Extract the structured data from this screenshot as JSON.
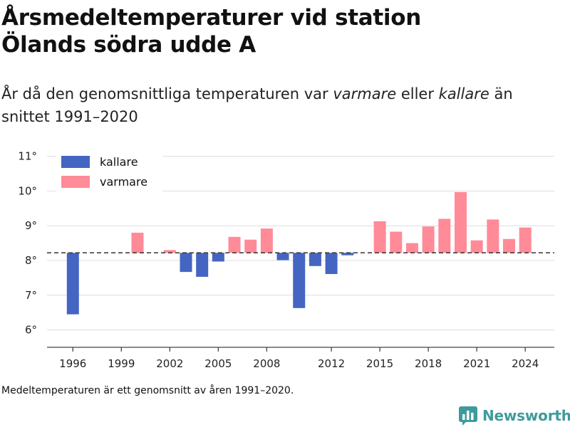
{
  "title_line1": "Årsmedeltemperaturer vid station",
  "title_line2": "Ölands södra udde A",
  "subtitle": {
    "part1": "År då den genomsnittliga temperaturen var ",
    "warm_word": "varmare",
    "part2": " eller ",
    "cold_word": "kallare",
    "part3": " än snittet 1991–2020"
  },
  "footnote": "Medeltemperaturen är ett genomsnitt av åren 1991–2020.",
  "brand": {
    "name": "Newsworthy",
    "icon": "newsworthy-bar-chart-logo-icon"
  },
  "colors": {
    "kallare": "#4565c2",
    "varmare": "#ff8b98",
    "grid": "#dddddd",
    "reference": "#333333"
  },
  "chart_data": {
    "type": "bar",
    "baseline": 8.22,
    "ylim": [
      5.5,
      11.3
    ],
    "yticks": [
      6,
      7,
      8,
      9,
      10,
      11
    ],
    "ytick_labels": [
      "6°",
      "7°",
      "8°",
      "9°",
      "10°",
      "11°"
    ],
    "xtick_labels": [
      {
        "year": 1996,
        "label": "1996"
      },
      {
        "year": 1999,
        "label": "1999"
      },
      {
        "year": 2002,
        "label": "2002"
      },
      {
        "year": 2005,
        "label": "2005"
      },
      {
        "year": 2008,
        "label": "2008"
      },
      {
        "year": 2012,
        "label": "2012"
      },
      {
        "year": 2015,
        "label": "2015"
      },
      {
        "year": 2018,
        "label": "2018"
      },
      {
        "year": 2021,
        "label": "2021"
      },
      {
        "year": 2024,
        "label": "2024"
      }
    ],
    "xlim": [
      1994.4,
      2025.8
    ],
    "legend": [
      {
        "key": "kallare",
        "label": "kallare"
      },
      {
        "key": "varmare",
        "label": "varmare"
      }
    ],
    "legend_position": "top-left",
    "grid": true,
    "years": [
      1996,
      2000,
      2002,
      2003,
      2004,
      2005,
      2006,
      2007,
      2008,
      2009,
      2010,
      2011,
      2012,
      2013,
      2015,
      2016,
      2017,
      2018,
      2019,
      2020,
      2021,
      2022,
      2023,
      2024
    ],
    "values": [
      6.45,
      8.8,
      8.3,
      7.67,
      7.53,
      7.97,
      8.68,
      8.6,
      8.92,
      8.01,
      6.63,
      7.84,
      7.61,
      8.15,
      9.13,
      8.83,
      8.5,
      8.98,
      9.2,
      9.97,
      8.58,
      9.18,
      8.62,
      8.95
    ]
  }
}
